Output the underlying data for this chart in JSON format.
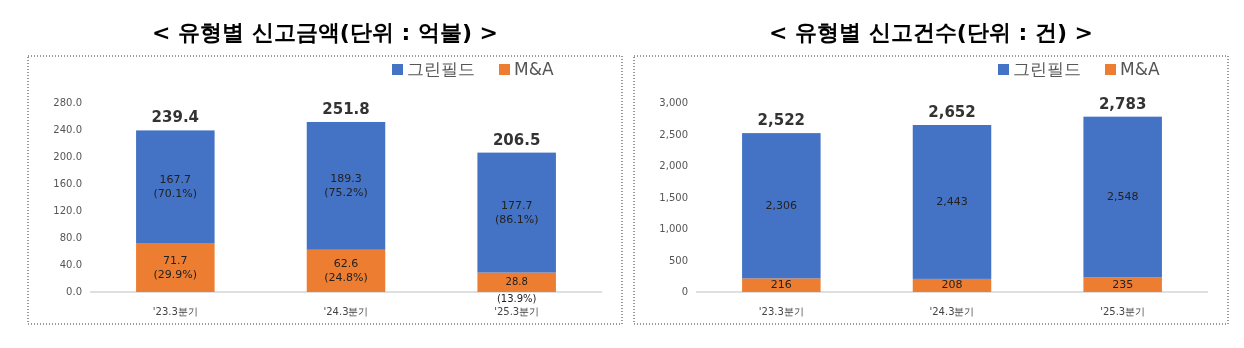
{
  "chart_data": [
    {
      "type": "bar",
      "stacked": true,
      "title": "< 유형별 신고금액(단위 : 억불) >",
      "categories": [
        "'23.3분기",
        "'24.3분기",
        "'25.3분기"
      ],
      "series": [
        {
          "name": "M&A",
          "color": "#ed7d31",
          "values": [
            71.7,
            62.6,
            28.8
          ],
          "value_labels": [
            "71.7\n(29.9%)",
            "62.6\n(24.8%)",
            "28.8\n(13.9%)"
          ]
        },
        {
          "name": "그린필드",
          "color": "#4472c4",
          "values": [
            167.7,
            189.3,
            177.7
          ],
          "value_labels": [
            "167.7\n(70.1%)",
            "189.3\n(75.2%)",
            "177.7\n(86.1%)"
          ]
        }
      ],
      "totals": [
        "239.4",
        "251.8",
        "206.5"
      ],
      "ylim": [
        0,
        280
      ],
      "yticks": [
        {
          "value": 0,
          "label": "0.0"
        },
        {
          "value": 40,
          "label": "40.0"
        },
        {
          "value": 80,
          "label": "80.0"
        },
        {
          "value": 120,
          "label": "120.0"
        },
        {
          "value": 160,
          "label": "160.0"
        },
        {
          "value": 200,
          "label": "200.0"
        },
        {
          "value": 240,
          "label": "240.0"
        },
        {
          "value": 280,
          "label": "280.0"
        }
      ],
      "legend": "top right"
    },
    {
      "type": "bar",
      "stacked": true,
      "title": "< 유형별 신고건수(단위 : 건) >",
      "categories": [
        "'23.3분기",
        "'24.3분기",
        "'25.3분기"
      ],
      "series": [
        {
          "name": "M&A",
          "color": "#ed7d31",
          "values": [
            216,
            208,
            235
          ],
          "value_labels": [
            "216",
            "208",
            "235"
          ]
        },
        {
          "name": "그린필드",
          "color": "#4472c4",
          "values": [
            2306,
            2443,
            2548
          ],
          "value_labels": [
            "2,306",
            "2,443",
            "2,548"
          ]
        }
      ],
      "totals": [
        "2,522",
        "2,652",
        "2,783"
      ],
      "ylim": [
        0,
        3000
      ],
      "yticks": [
        0,
        500,
        {
          "value": 1000,
          "label": "1,000"
        },
        {
          "value": 1500,
          "label": "1,500"
        },
        {
          "value": 2000,
          "label": "2,000"
        },
        {
          "value": 2500,
          "label": "2,500"
        },
        {
          "value": 3000,
          "label": "3,000"
        }
      ],
      "legend": "top right"
    }
  ]
}
